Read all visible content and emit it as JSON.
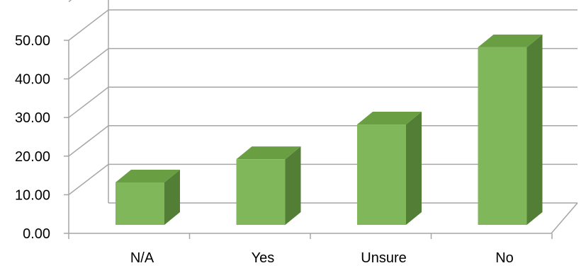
{
  "chart_data": {
    "type": "bar",
    "title": "",
    "xlabel": "",
    "ylabel": "",
    "categories": [
      "N/A",
      "Yes",
      "Unsure",
      "No"
    ],
    "values": [
      11.0,
      17.0,
      26.0,
      46.0
    ],
    "ylim": [
      0,
      50
    ],
    "y_ticks": [
      "0.00",
      "10.00",
      "20.00",
      "30.00",
      "40.00",
      "50.00"
    ],
    "grid": true,
    "legend": "none",
    "style": "3d-column",
    "colors": {
      "front": "#80b75a",
      "top": "#6a9e43",
      "side": "#527f35",
      "grid": "#a6a6a6",
      "text": "#000000"
    }
  }
}
